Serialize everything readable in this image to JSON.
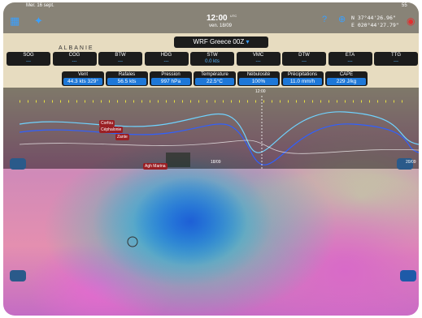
{
  "status": {
    "date": "Mer. 16 sept.",
    "battery": "55"
  },
  "header": {
    "time": "12:00",
    "time_zone": "UTC",
    "date": "ven. 18/09",
    "lat": "N  37°44'26.96\"",
    "lon": "E 020°44'27.79\""
  },
  "model": "WRF Greece 00Z",
  "map_labels": {
    "country": "ALBANIE",
    "places": [
      "Corfou",
      "Céphalonie",
      "Zante",
      "Agh Marina"
    ]
  },
  "instruments": [
    {
      "label": "SOG",
      "value": "---"
    },
    {
      "label": "COG",
      "value": "---"
    },
    {
      "label": "BTW",
      "value": "---"
    },
    {
      "label": "HDG",
      "value": "---"
    },
    {
      "label": "STW",
      "value": "0.0 kts"
    },
    {
      "label": "VMC",
      "value": "---"
    },
    {
      "label": "DTW",
      "value": "---"
    },
    {
      "label": "ETA",
      "value": "---"
    },
    {
      "label": "TTG",
      "value": "---"
    }
  ],
  "weather": [
    {
      "label": "Vent",
      "value": "44.3 kts 329°"
    },
    {
      "label": "Rafales",
      "value": "56.5 kts"
    },
    {
      "label": "Pression",
      "value": "997 hPa"
    },
    {
      "label": "Température",
      "value": "22.5°C"
    },
    {
      "label": "Nébulosité",
      "value": "100%"
    },
    {
      "label": "Précipitations",
      "value": "11.0 mm/h"
    },
    {
      "label": "CAPE",
      "value": "229 J/kg"
    }
  ],
  "timeline": {
    "cursor": "12:00",
    "dates": [
      "18/09",
      "20/09"
    ]
  }
}
